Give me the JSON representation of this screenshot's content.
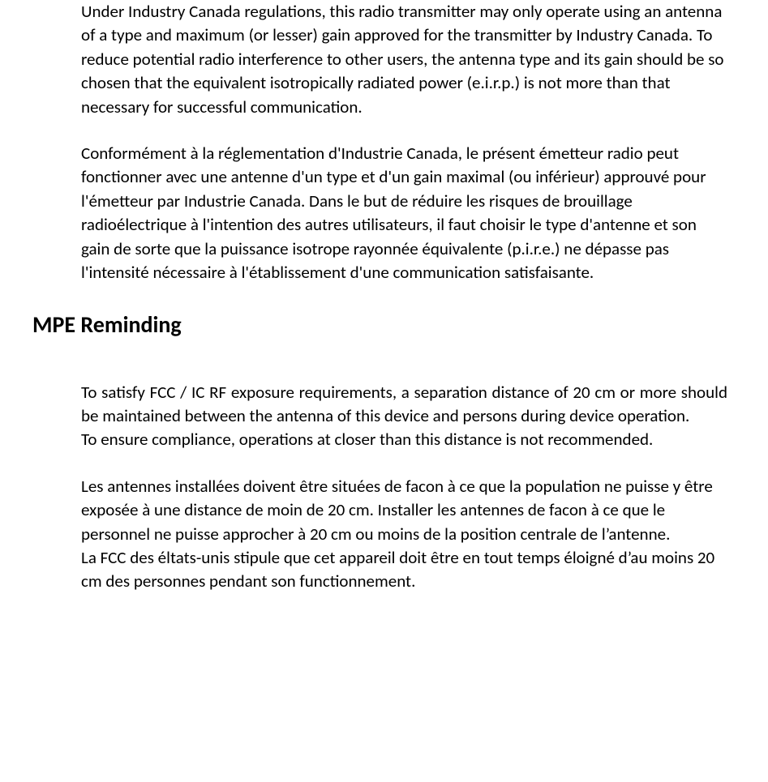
{
  "colors": {
    "background": "#ffffff",
    "text": "#000000"
  },
  "typography": {
    "body_font_family": "Calibri, 'Segoe UI', Arial, sans-serif",
    "body_font_size_pt": 16,
    "body_line_height": 1.4,
    "heading_font_size_pt": 21,
    "heading_font_weight": "bold"
  },
  "paragraphs": {
    "p1_en": "Under Industry Canada regulations, this radio transmitter may only operate using an antenna of a type and maximum (or lesser) gain approved for the transmitter by Industry Canada. To reduce potential radio interference to other users, the antenna type and its gain should be so chosen that the equivalent isotropically radiated power (e.i.r.p.) is not more than that necessary for successful communication.",
    "p1_fr": "Conformément à la réglementation d'Industrie Canada, le présent émetteur radio peut fonctionner avec une antenne d'un type et d'un gain maximal (ou inférieur) approuvé pour l'émetteur par Industrie Canada. Dans le but de réduire les risques de brouillage radioélectrique à l'intention des autres utilisateurs, il faut choisir le type d'antenne et son gain de sorte que la puissance isotrope rayonnée équivalente (p.i.r.e.) ne dépasse pas l'intensité nécessaire à l'établissement d'une communication satisfaisante."
  },
  "heading": "MPE Reminding",
  "mpe": {
    "en1": "To satisfy FCC / IC RF exposure requirements, a separation distance of 20 cm or more should be maintained between the antenna of this device and persons during device operation.",
    "en2": "To ensure compliance, operations at closer than this distance is not recommended.",
    "fr1": "Les antennes installées doivent être situées de facon à ce que la population ne puisse y être exposée à une distance de moin de 20 cm. Installer les antennes de facon à ce que le personnel ne puisse approcher à 20 cm ou moins de la position centrale de l’antenne.",
    "fr2": "La FCC des éltats-unis stipule que cet appareil doit être en tout temps éloigné d’au moins 20 cm des personnes pendant son functionnement."
  }
}
